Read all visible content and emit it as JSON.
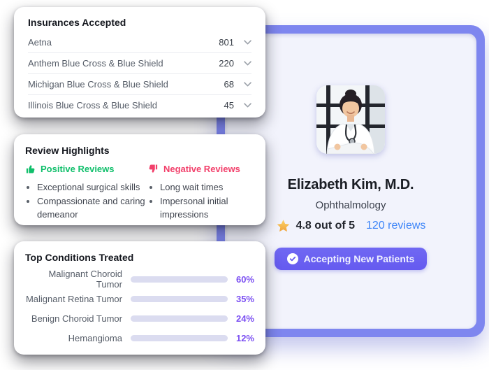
{
  "colors": {
    "accent_purple": "#655af0",
    "card_frame_purple": "#7e86ef",
    "inner_card_bg": "#f2f3fc",
    "bar_fill": "#6156e6",
    "bar_track": "#dbdcf0",
    "percent_text": "#7b4ff2",
    "positive_green": "#10bf6b",
    "negative_pink": "#f2406b",
    "reviews_blue": "#3f86f8",
    "star_gold": "#f5b63e"
  },
  "insurances": {
    "title": "Insurances Accepted",
    "row_icon": "chevron-down-icon",
    "rows": [
      {
        "name": "Aetna",
        "count": "801"
      },
      {
        "name": "Anthem Blue Cross & Blue Shield",
        "count": "220"
      },
      {
        "name": "Michigan Blue Cross & Blue Shield",
        "count": "68"
      },
      {
        "name": "Illinois Blue Cross & Blue Shield",
        "count": "45"
      }
    ]
  },
  "review_highlights": {
    "title": "Review Highlights",
    "positive": {
      "icon": "thumbs-up-icon",
      "label": "Positive Reviews",
      "items": [
        "Exceptional surgical skills",
        "Compassionate and caring demeanor"
      ]
    },
    "negative": {
      "icon": "thumbs-down-icon",
      "label": "Negative Reviews",
      "items": [
        "Long wait times",
        "Impersonal initial impressions"
      ]
    }
  },
  "conditions": {
    "title": "Top Conditions Treated",
    "chart_data": {
      "type": "bar",
      "categories": [
        "Malignant Choroid Tumor",
        "Malignant Retina Tumor",
        "Benign Choroid Tumor",
        "Hemangioma"
      ],
      "values": [
        60,
        35,
        24,
        12
      ],
      "value_labels": [
        "60%",
        "35%",
        "24%",
        "12%"
      ],
      "bar_fill_display_pct": [
        71,
        50,
        41,
        25
      ],
      "orientation": "horizontal"
    }
  },
  "profile": {
    "avatar": "doctor-photo",
    "name": "Elizabeth Kim, M.D.",
    "specialty": "Ophthalmology",
    "rating_icon": "star-icon",
    "rating_text": "4.8 out of 5",
    "reviews_link": "120 reviews",
    "button": {
      "icon": "check-circle-icon",
      "label": "Accepting New Patients"
    }
  }
}
